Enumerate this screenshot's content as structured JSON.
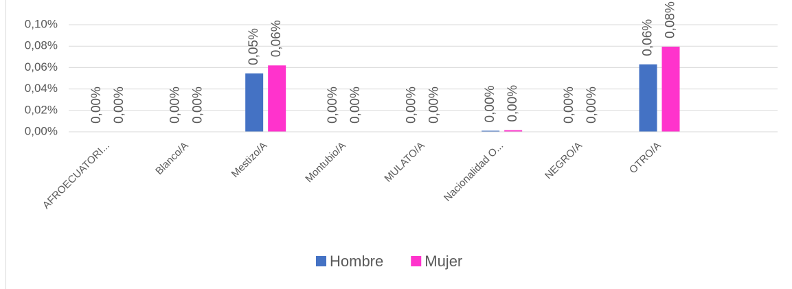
{
  "chart_data": {
    "type": "bar",
    "categories": [
      "AFROECUATORI...",
      "Blanco/A",
      "Mestizo/A",
      "Montubio/A",
      "MULATO/A",
      "Nacionalidad O...",
      "NEGRO/A",
      "OTRO/A",
      null
    ],
    "series": [
      {
        "name": "Hombre",
        "color": "#4472c4",
        "values": [
          0,
          0,
          0.0545,
          0,
          0,
          0.001,
          0,
          0.063,
          null
        ],
        "value_labels": [
          "0,00%",
          "0,00%",
          "0,05%",
          "0,00%",
          "0,00%",
          "0,00%",
          "0,00%",
          "0,06%",
          null
        ]
      },
      {
        "name": "Mujer",
        "color": "#ff33cc",
        "values": [
          0,
          0,
          0.062,
          0,
          0,
          0.0015,
          0,
          0.0795,
          null
        ],
        "value_labels": [
          "0,00%",
          "0,00%",
          "0,06%",
          "0,00%",
          "0,00%",
          "0,00%",
          "0,00%",
          "0,08%",
          null
        ]
      }
    ],
    "ylim": [
      0,
      0.1
    ],
    "yticks": [
      {
        "value": 0,
        "label": "0,00%"
      },
      {
        "value": 0.02,
        "label": "0,02%"
      },
      {
        "value": 0.04,
        "label": "0,04%"
      },
      {
        "value": 0.06,
        "label": "0,06%"
      },
      {
        "value": 0.08,
        "label": "0,08%"
      },
      {
        "value": 0.1,
        "label": "0,10%"
      }
    ],
    "grid": true,
    "legend": "bottom"
  }
}
